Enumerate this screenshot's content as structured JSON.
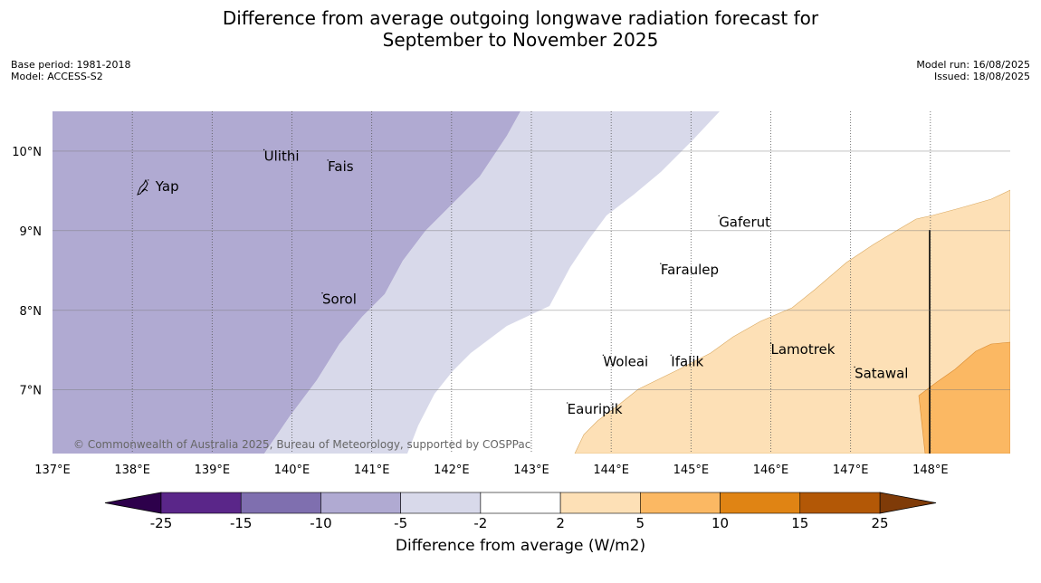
{
  "title_line1": "Difference from average outgoing longwave radiation forecast for",
  "title_line2": "September to November 2025",
  "meta_left": {
    "base_period": "Base period: 1981-2018",
    "model": "Model: ACCESS-S2"
  },
  "meta_right": {
    "model_run": "Model run: 16/08/2025",
    "issued": "Issued: 18/08/2025"
  },
  "map": {
    "lon_range": [
      137,
      149
    ],
    "lat_range": [
      6.2,
      10.5
    ],
    "lon_ticks": [
      "137°E",
      "138°E",
      "139°E",
      "140°E",
      "141°E",
      "142°E",
      "143°E",
      "144°E",
      "145°E",
      "146°E",
      "147°E",
      "148°E"
    ],
    "lat_ticks": [
      "7°N",
      "8°N",
      "9°N",
      "10°N"
    ],
    "places": [
      {
        "name": "Yap",
        "lon": 138.2,
        "lat": 9.5
      },
      {
        "name": "Ulithi",
        "lon": 139.65,
        "lat": 9.88
      },
      {
        "name": "Fais",
        "lon": 140.45,
        "lat": 9.75
      },
      {
        "name": "Sorol",
        "lon": 140.38,
        "lat": 8.08
      },
      {
        "name": "Gaferut",
        "lon": 145.35,
        "lat": 9.05
      },
      {
        "name": "Faraulep",
        "lon": 144.62,
        "lat": 8.45
      },
      {
        "name": "Woleai",
        "lon": 143.9,
        "lat": 7.3
      },
      {
        "name": "Ifalik",
        "lon": 144.75,
        "lat": 7.3
      },
      {
        "name": "Lamotrek",
        "lon": 146.0,
        "lat": 7.45
      },
      {
        "name": "Satawal",
        "lon": 147.05,
        "lat": 7.15
      },
      {
        "name": "Eauripik",
        "lon": 143.45,
        "lat": 6.7
      }
    ],
    "copyright": "© Commonwealth of Australia 2025, Bureau of Meteorology, supported by COSPPac",
    "category_colors": {
      "-10_to_-5": "#b0aad2",
      "-5_to_-2": "#d8d9ea",
      "-2_to_2": "#ffffff",
      "2_to_5": "#fde0b6",
      "5_to_10": "#fbb863"
    }
  },
  "colorbar": {
    "title": "Difference from average (W/m2)",
    "boundaries": [
      "-25",
      "-15",
      "-10",
      "-5",
      "-2",
      "2",
      "5",
      "10",
      "15",
      "25"
    ],
    "colors": [
      "#5a2689",
      "#7f6faf",
      "#b0aad2",
      "#d8d9ea",
      "#ffffff",
      "#fde0b6",
      "#fbb863",
      "#e08414",
      "#b35806"
    ],
    "extend_low": "#2d004b",
    "extend_high": "#7f3b08"
  }
}
